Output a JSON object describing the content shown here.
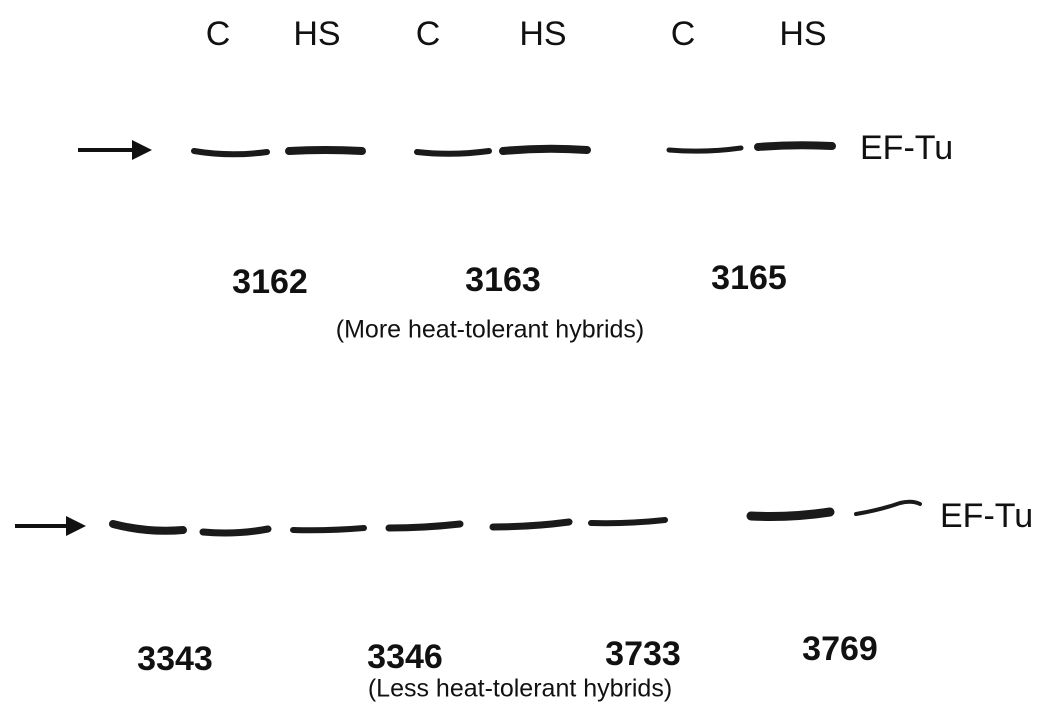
{
  "top_panel": {
    "lanes": [
      "C",
      "HS",
      "C",
      "HS",
      "C",
      "HS"
    ],
    "band_label": "EF-Tu",
    "hybrids": [
      "3162",
      "3163",
      "3165"
    ],
    "caption": "(More heat-tolerant hybrids)"
  },
  "bottom_panel": {
    "band_label": "EF-Tu",
    "hybrids": [
      "3343",
      "3346",
      "3733",
      "3769"
    ],
    "caption": "(Less heat-tolerant hybrids)"
  }
}
